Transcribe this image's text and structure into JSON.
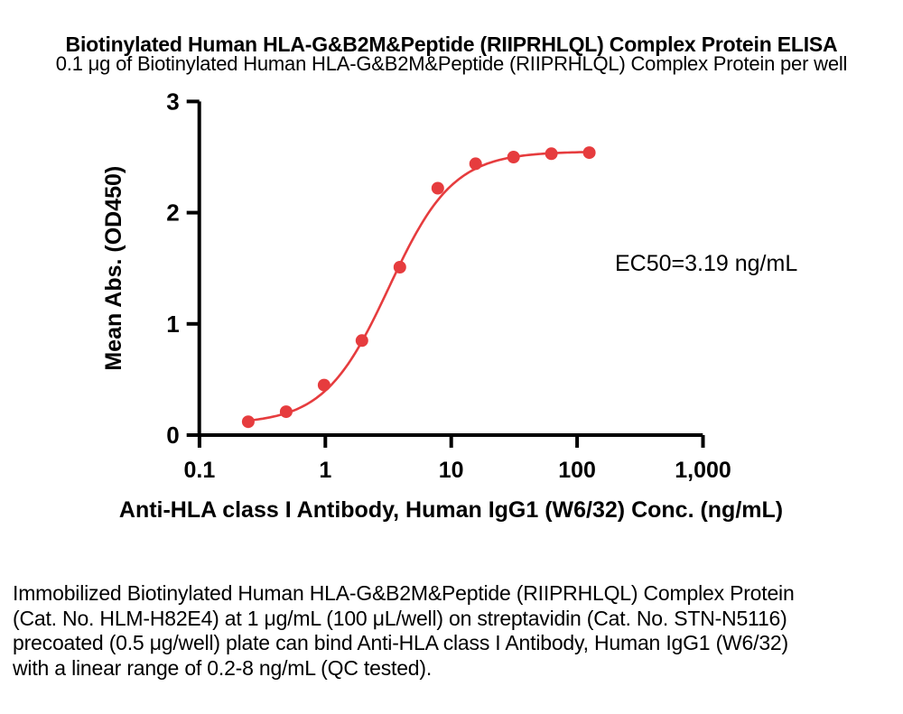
{
  "figure": {
    "description": "Immobilized Biotinylated Human HLA-G&B2M&Peptide (RIIPRHLQL) Complex Protein (Cat. No. HLM-H82E4) at 1 μg/mL (100 μL/well) on streptavidin (Cat. No. STN-N5116) precoated (0.5 μg/well) plate can bind Anti-HLA class I Antibody, Human IgG1 (W6/32) with a linear range of 0.2-8 ng/mL (QC tested)."
  },
  "chart_data": {
    "type": "scatter",
    "title": "Biotinylated Human HLA-G&B2M&Peptide (RIIPRHLQL) Complex Protein ELISA",
    "subtitle": "0.1 μg of Biotinylated Human HLA-G&B2M&Peptide (RIIPRHLQL) Complex Protein per well",
    "xlabel": "Anti-HLA class I Antibody, Human IgG1 (W6/32) Conc. (ng/mL)",
    "ylabel": "Mean Abs. (OD450)",
    "x_scale": "log10",
    "xlim": [
      0.1,
      1000
    ],
    "ylim": [
      0,
      3
    ],
    "grid": false,
    "legend_position": "none",
    "x_ticks": [
      0.1,
      1,
      10,
      100,
      1000
    ],
    "x_tick_labels": [
      "0.1",
      "1",
      "10",
      "100",
      "1,000"
    ],
    "y_ticks": [
      0,
      1,
      2,
      3
    ],
    "y_tick_labels": [
      "0",
      "1",
      "2",
      "3"
    ],
    "annotation": "EC50=3.19 ng/mL",
    "ec50_ng_per_ml": 3.19,
    "axis_color": "#000000",
    "series": [
      {
        "name": "Anti-HLA class I Antibody, Human IgG1 (W6/32)",
        "color": "#e63c3e",
        "marker": "circle",
        "x": [
          0.244,
          0.488,
          0.977,
          1.953,
          3.906,
          7.813,
          15.625,
          31.25,
          62.5,
          125
        ],
        "y": [
          0.12,
          0.21,
          0.45,
          0.85,
          1.51,
          2.22,
          2.44,
          2.5,
          2.53,
          2.54
        ]
      }
    ],
    "fit": {
      "model": "4PL",
      "bottom": 0.1,
      "top": 2.55,
      "ec50": 3.19,
      "hill": 1.7
    }
  }
}
